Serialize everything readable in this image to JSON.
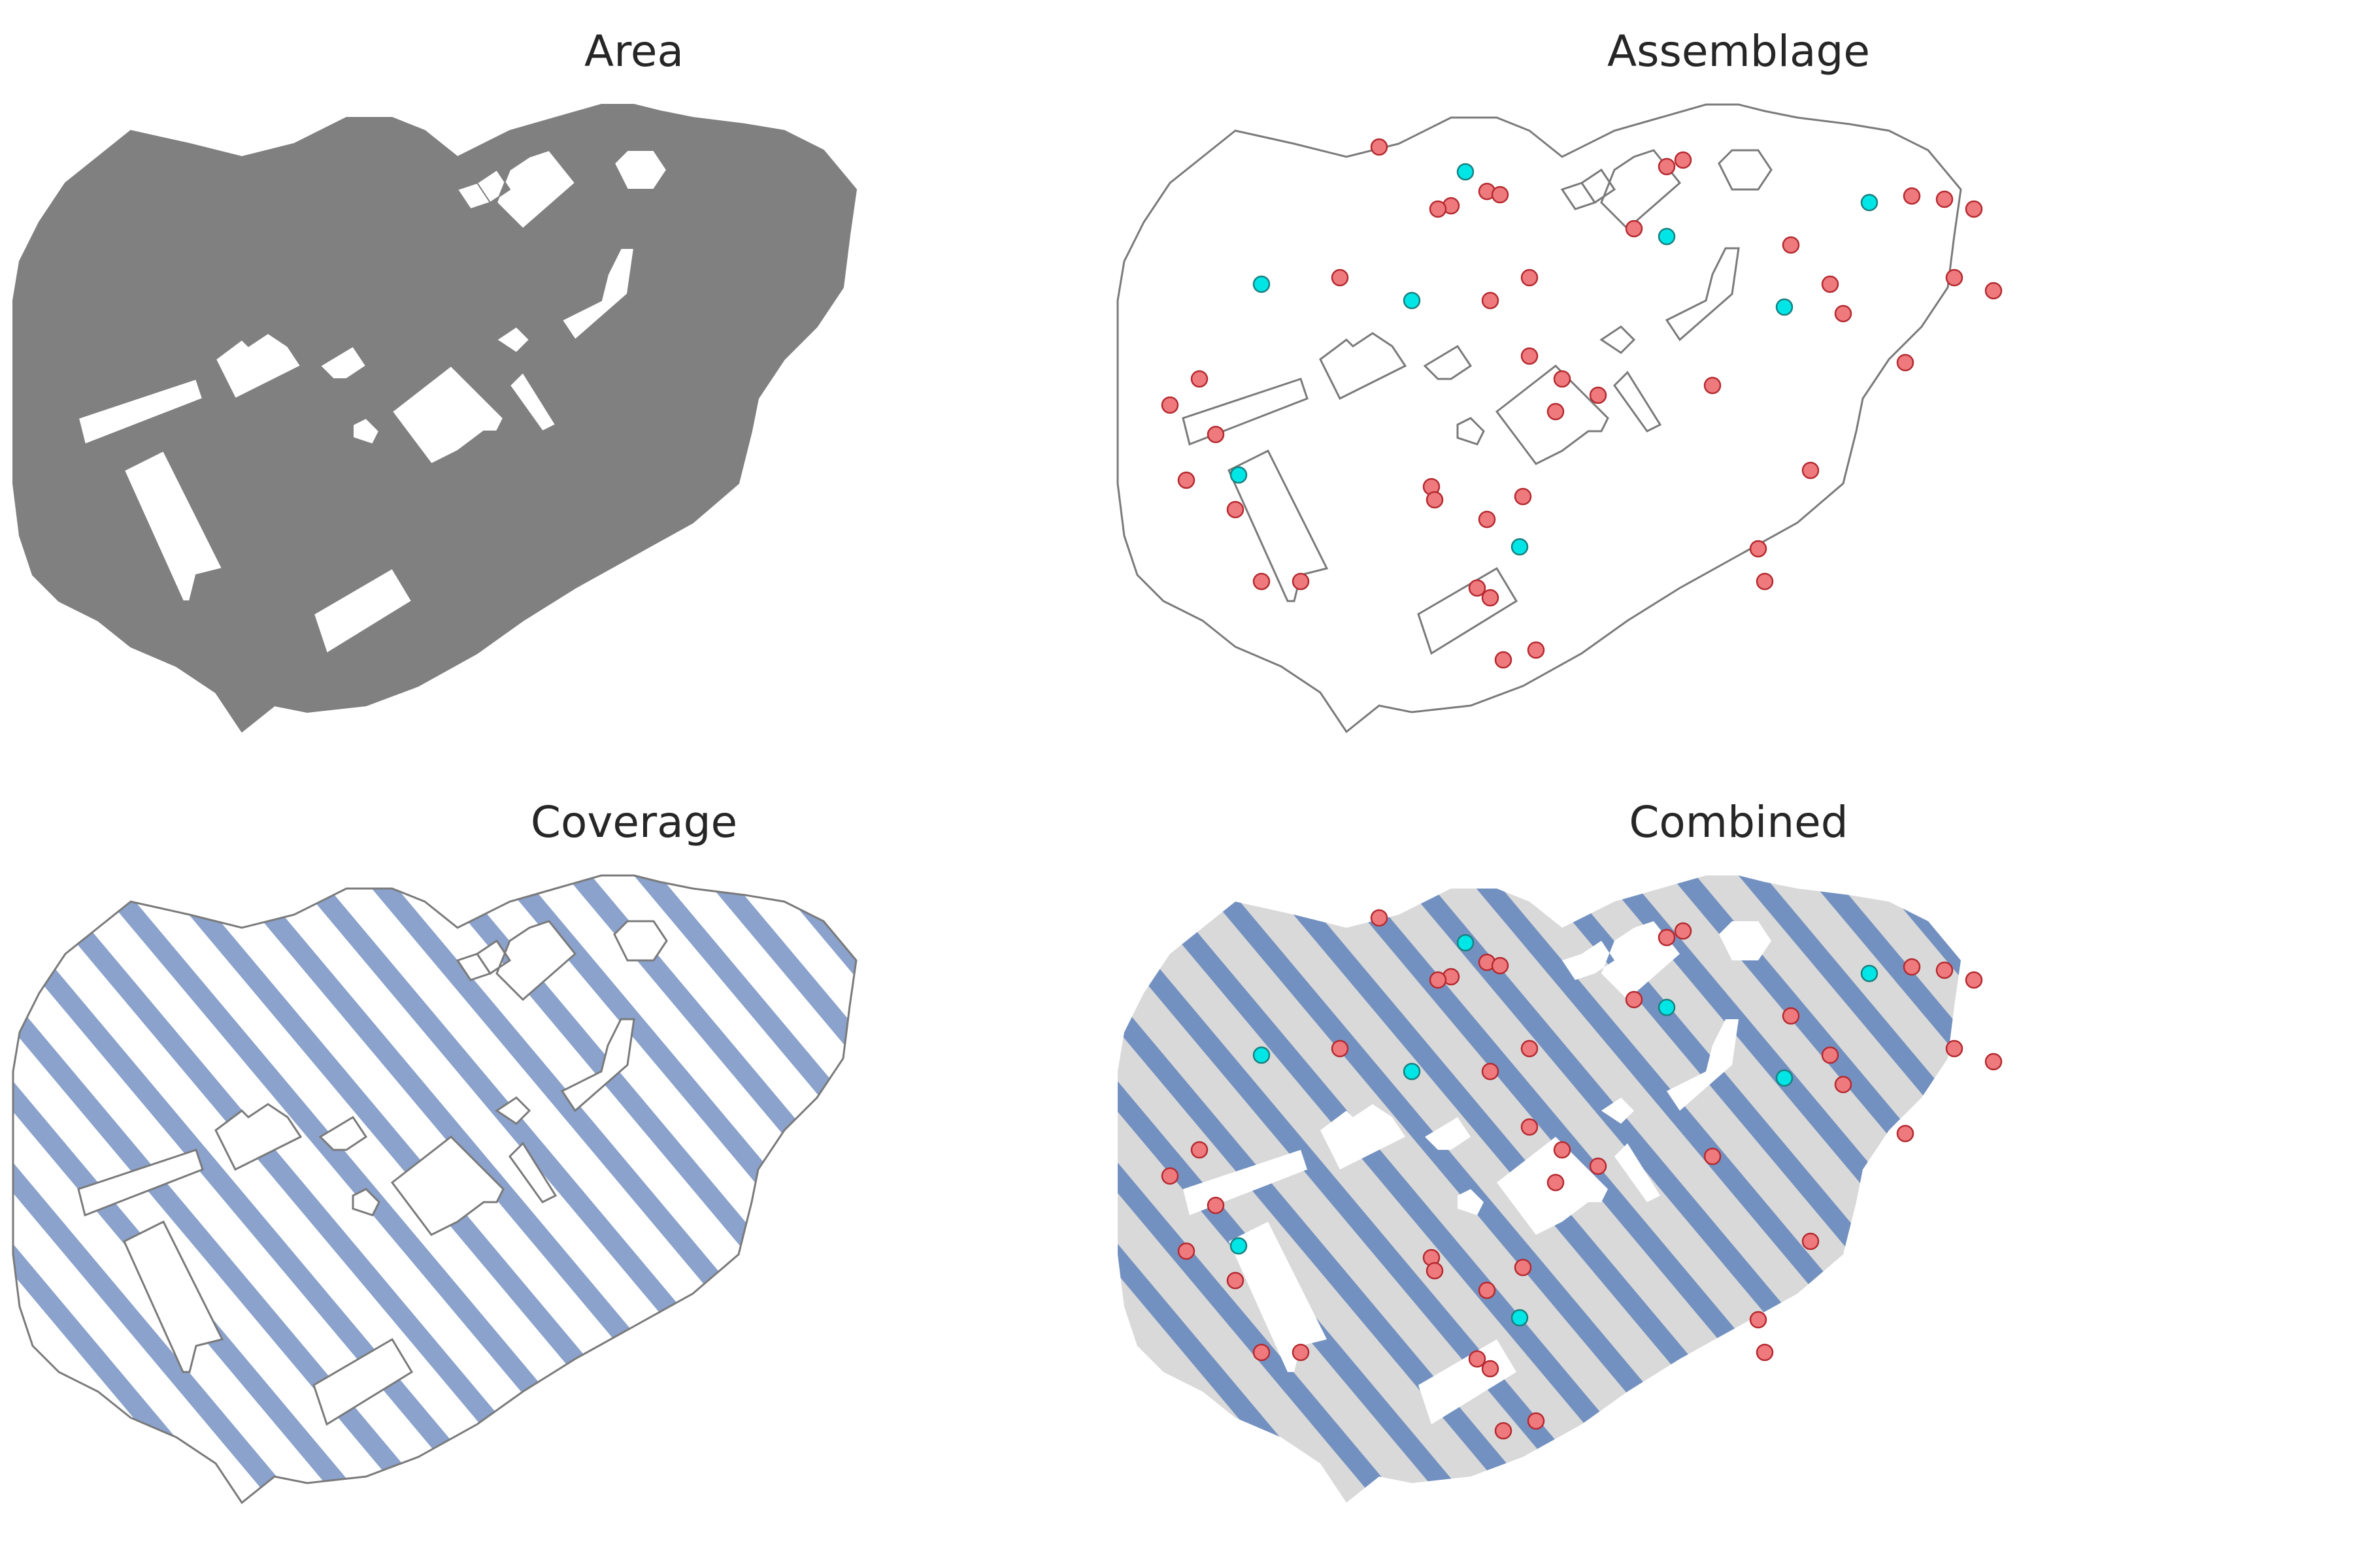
{
  "panels": [
    {
      "key": "area",
      "title": "Area"
    },
    {
      "key": "assemblage",
      "title": "Assemblage"
    },
    {
      "key": "coverage",
      "title": "Coverage"
    },
    {
      "key": "combined",
      "title": "Combined"
    }
  ],
  "colors": {
    "area_fill": "#808080",
    "outline": "#7a7a7a",
    "stripe": "#8aa2cc",
    "combined_bg": "#d9d9d9",
    "combined_stripe": "#7391c0",
    "point_red": "#ef7a7e",
    "point_red_edge": "#b52a30",
    "point_cyan": "#00e5e5",
    "point_cyan_edge": "#1a8080"
  },
  "legend": null
}
